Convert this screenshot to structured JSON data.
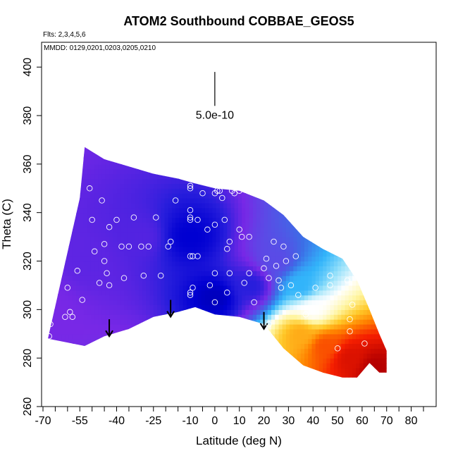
{
  "chart_data": {
    "type": "heatmap",
    "title": "ATOM2 Southbound COBBAE_GEOS5",
    "flights_note": "Flts: 2,3,4,5,6",
    "date_note": "MMDD: 0129,0201,0203,0205,0210",
    "xlabel": "Latitude (deg N)",
    "ylabel": "Theta (C)",
    "xlim": [
      -70,
      85
    ],
    "ylim": [
      260,
      405
    ],
    "x_ticks": [
      -70,
      -55,
      -40,
      -25,
      -10,
      0,
      10,
      20,
      30,
      40,
      50,
      60,
      70,
      80
    ],
    "x_minor_ticks": [
      -65,
      -60,
      -50,
      -45,
      -35,
      -30,
      -20,
      -15,
      -5,
      5,
      15,
      25,
      35,
      45,
      55,
      65,
      75,
      85
    ],
    "y_ticks": [
      260,
      280,
      300,
      320,
      340,
      360,
      380,
      400
    ],
    "scale_bar": {
      "label": "5.0e-10",
      "x": 0,
      "y_bottom": 384,
      "y_top": 398
    },
    "field": {
      "colormap": "blue-white-red",
      "columns": [
        {
          "lat": -68,
          "bottom": 288,
          "top": null
        },
        {
          "lat": -53,
          "bottom": 285,
          "top": 367
        },
        {
          "lat": -45,
          "bottom": 289,
          "top": 362
        },
        {
          "lat": -35,
          "bottom": 292,
          "top": 359
        },
        {
          "lat": -25,
          "bottom": 297,
          "top": 356
        },
        {
          "lat": -15,
          "bottom": 299,
          "top": 354
        },
        {
          "lat": -8,
          "bottom": 301,
          "top": 352
        },
        {
          "lat": 0,
          "bottom": 298,
          "top": 350
        },
        {
          "lat": 10,
          "bottom": 297,
          "top": 349
        },
        {
          "lat": 20,
          "bottom": 294,
          "top": 345
        },
        {
          "lat": 28,
          "bottom": 284,
          "top": 339
        },
        {
          "lat": 36,
          "bottom": 277,
          "top": 330
        },
        {
          "lat": 44,
          "bottom": 274,
          "top": 325
        },
        {
          "lat": 52,
          "bottom": 272,
          "top": 321
        },
        {
          "lat": 58,
          "bottom": 272,
          "top": 312
        },
        {
          "lat": 63,
          "bottom": 278,
          "top": 300
        },
        {
          "lat": 67,
          "bottom": 274,
          "top": 290
        },
        {
          "lat": 70,
          "bottom": 274,
          "top": 283
        }
      ],
      "left_edge": [
        {
          "lat": -68,
          "theta": 288
        },
        {
          "lat": -55,
          "theta": 346
        },
        {
          "lat": -53,
          "theta": 367
        }
      ],
      "colour_values": [
        {
          "lat": -68,
          "theta": 300,
          "value": -0.55
        },
        {
          "lat": -50,
          "theta": 320,
          "value": -0.6
        },
        {
          "lat": -30,
          "theta": 330,
          "value": -0.62
        },
        {
          "lat": -10,
          "theta": 330,
          "value": -0.85
        },
        {
          "lat": 0,
          "theta": 305,
          "value": -0.9
        },
        {
          "lat": 15,
          "theta": 310,
          "value": -0.7
        },
        {
          "lat": 25,
          "theta": 320,
          "value": -0.45
        },
        {
          "lat": 35,
          "theta": 310,
          "value": -0.2
        },
        {
          "lat": 40,
          "theta": 300,
          "value": 0.05
        },
        {
          "lat": 35,
          "theta": 290,
          "value": 0.45
        },
        {
          "lat": 45,
          "theta": 285,
          "value": 0.65
        },
        {
          "lat": 55,
          "theta": 280,
          "value": 0.85
        },
        {
          "lat": 65,
          "theta": 276,
          "value": 1.0
        }
      ]
    },
    "arrows": [
      {
        "lat": -43,
        "theta_top": 296,
        "theta_bottom": 289
      },
      {
        "lat": -18,
        "theta_top": 304,
        "theta_bottom": 297
      },
      {
        "lat": 20,
        "theta_top": 299,
        "theta_bottom": 292
      }
    ],
    "points": [
      {
        "lat": -67.5,
        "theta": 289
      },
      {
        "lat": -67,
        "theta": 294
      },
      {
        "lat": -65,
        "theta": 324
      },
      {
        "lat": -61,
        "theta": 297
      },
      {
        "lat": -60,
        "theta": 309
      },
      {
        "lat": -59,
        "theta": 299
      },
      {
        "lat": -58,
        "theta": 297
      },
      {
        "lat": -57,
        "theta": 345
      },
      {
        "lat": -56,
        "theta": 316
      },
      {
        "lat": -54,
        "theta": 304
      },
      {
        "lat": -51,
        "theta": 350
      },
      {
        "lat": -50,
        "theta": 337
      },
      {
        "lat": -49,
        "theta": 324
      },
      {
        "lat": -47,
        "theta": 311
      },
      {
        "lat": -46,
        "theta": 345
      },
      {
        "lat": -45,
        "theta": 327
      },
      {
        "lat": -45,
        "theta": 320
      },
      {
        "lat": -44,
        "theta": 315
      },
      {
        "lat": -43,
        "theta": 310
      },
      {
        "lat": -43,
        "theta": 334
      },
      {
        "lat": -40,
        "theta": 337
      },
      {
        "lat": -38,
        "theta": 326
      },
      {
        "lat": -37,
        "theta": 313
      },
      {
        "lat": -35,
        "theta": 326
      },
      {
        "lat": -33,
        "theta": 338
      },
      {
        "lat": -30,
        "theta": 326
      },
      {
        "lat": -29,
        "theta": 314
      },
      {
        "lat": -27,
        "theta": 326
      },
      {
        "lat": -24,
        "theta": 338
      },
      {
        "lat": -22,
        "theta": 314
      },
      {
        "lat": -19,
        "theta": 326
      },
      {
        "lat": -18,
        "theta": 328
      },
      {
        "lat": -16,
        "theta": 345
      },
      {
        "lat": -10,
        "theta": 350
      },
      {
        "lat": -10,
        "theta": 351
      },
      {
        "lat": -10,
        "theta": 338
      },
      {
        "lat": -10,
        "theta": 337
      },
      {
        "lat": -10,
        "theta": 341
      },
      {
        "lat": -10,
        "theta": 322
      },
      {
        "lat": -9,
        "theta": 322
      },
      {
        "lat": -10,
        "theta": 307
      },
      {
        "lat": -10,
        "theta": 306
      },
      {
        "lat": -9,
        "theta": 309
      },
      {
        "lat": -7,
        "theta": 337
      },
      {
        "lat": -7,
        "theta": 322
      },
      {
        "lat": -5,
        "theta": 348
      },
      {
        "lat": -3,
        "theta": 333
      },
      {
        "lat": -2,
        "theta": 310
      },
      {
        "lat": 0,
        "theta": 348
      },
      {
        "lat": 0,
        "theta": 335
      },
      {
        "lat": 0,
        "theta": 315
      },
      {
        "lat": 0,
        "theta": 303
      },
      {
        "lat": 1,
        "theta": 349
      },
      {
        "lat": 2,
        "theta": 349
      },
      {
        "lat": 3,
        "theta": 346
      },
      {
        "lat": 4,
        "theta": 337
      },
      {
        "lat": 5,
        "theta": 325
      },
      {
        "lat": 5,
        "theta": 307
      },
      {
        "lat": 6,
        "theta": 315
      },
      {
        "lat": 6,
        "theta": 328
      },
      {
        "lat": 7,
        "theta": 349
      },
      {
        "lat": 8,
        "theta": 348
      },
      {
        "lat": 10,
        "theta": 349
      },
      {
        "lat": 10,
        "theta": 333
      },
      {
        "lat": 11,
        "theta": 330
      },
      {
        "lat": 12,
        "theta": 311
      },
      {
        "lat": 14,
        "theta": 330
      },
      {
        "lat": 14,
        "theta": 315
      },
      {
        "lat": 16,
        "theta": 303
      },
      {
        "lat": 20,
        "theta": 317
      },
      {
        "lat": 21,
        "theta": 321
      },
      {
        "lat": 22,
        "theta": 313
      },
      {
        "lat": 22,
        "theta": 294
      },
      {
        "lat": 24,
        "theta": 328
      },
      {
        "lat": 25,
        "theta": 318
      },
      {
        "lat": 26,
        "theta": 312
      },
      {
        "lat": 27,
        "theta": 309
      },
      {
        "lat": 28,
        "theta": 326
      },
      {
        "lat": 29,
        "theta": 320
      },
      {
        "lat": 31,
        "theta": 310
      },
      {
        "lat": 33,
        "theta": 322
      },
      {
        "lat": 34,
        "theta": 306
      },
      {
        "lat": 37,
        "theta": 298
      },
      {
        "lat": 41,
        "theta": 309
      },
      {
        "lat": 47,
        "theta": 314
      },
      {
        "lat": 47,
        "theta": 310
      },
      {
        "lat": 50,
        "theta": 284
      },
      {
        "lat": 54,
        "theta": 312
      },
      {
        "lat": 55,
        "theta": 291
      },
      {
        "lat": 55,
        "theta": 296
      },
      {
        "lat": 56,
        "theta": 302
      },
      {
        "lat": 61,
        "theta": 286
      }
    ]
  }
}
